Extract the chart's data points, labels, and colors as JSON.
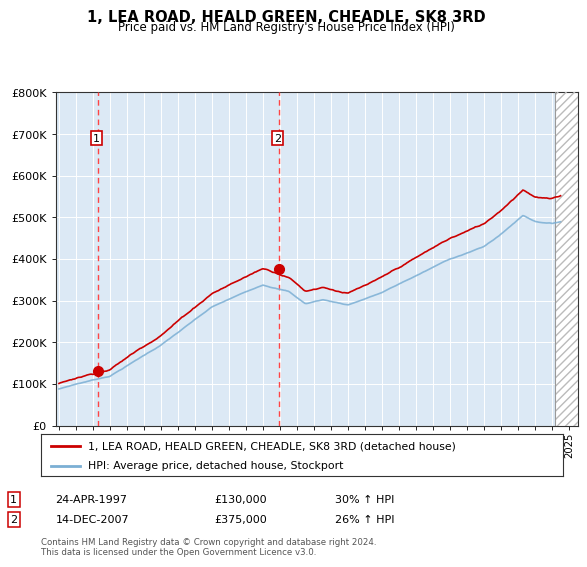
{
  "title": "1, LEA ROAD, HEALD GREEN, CHEADLE, SK8 3RD",
  "subtitle": "Price paid vs. HM Land Registry's House Price Index (HPI)",
  "legend_line1": "1, LEA ROAD, HEALD GREEN, CHEADLE, SK8 3RD (detached house)",
  "legend_line2": "HPI: Average price, detached house, Stockport",
  "footnote": "Contains HM Land Registry data © Crown copyright and database right 2024.\nThis data is licensed under the Open Government Licence v3.0.",
  "sale1_date": "24-APR-1997",
  "sale1_price": 130000,
  "sale1_label": "30% ↑ HPI",
  "sale2_date": "14-DEC-2007",
  "sale2_price": 375000,
  "sale2_label": "26% ↑ HPI",
  "sale1_x": 1997.31,
  "sale2_x": 2007.95,
  "ylim_min": 0,
  "ylim_max": 800000,
  "xlim_min": 1994.8,
  "xlim_max": 2025.5,
  "hpi_color": "#7bafd4",
  "price_color": "#cc0000",
  "bg_color": "#dce9f5",
  "grid_color": "#ffffff",
  "vline_color": "#ff4444",
  "hatch_start": 2024.17
}
